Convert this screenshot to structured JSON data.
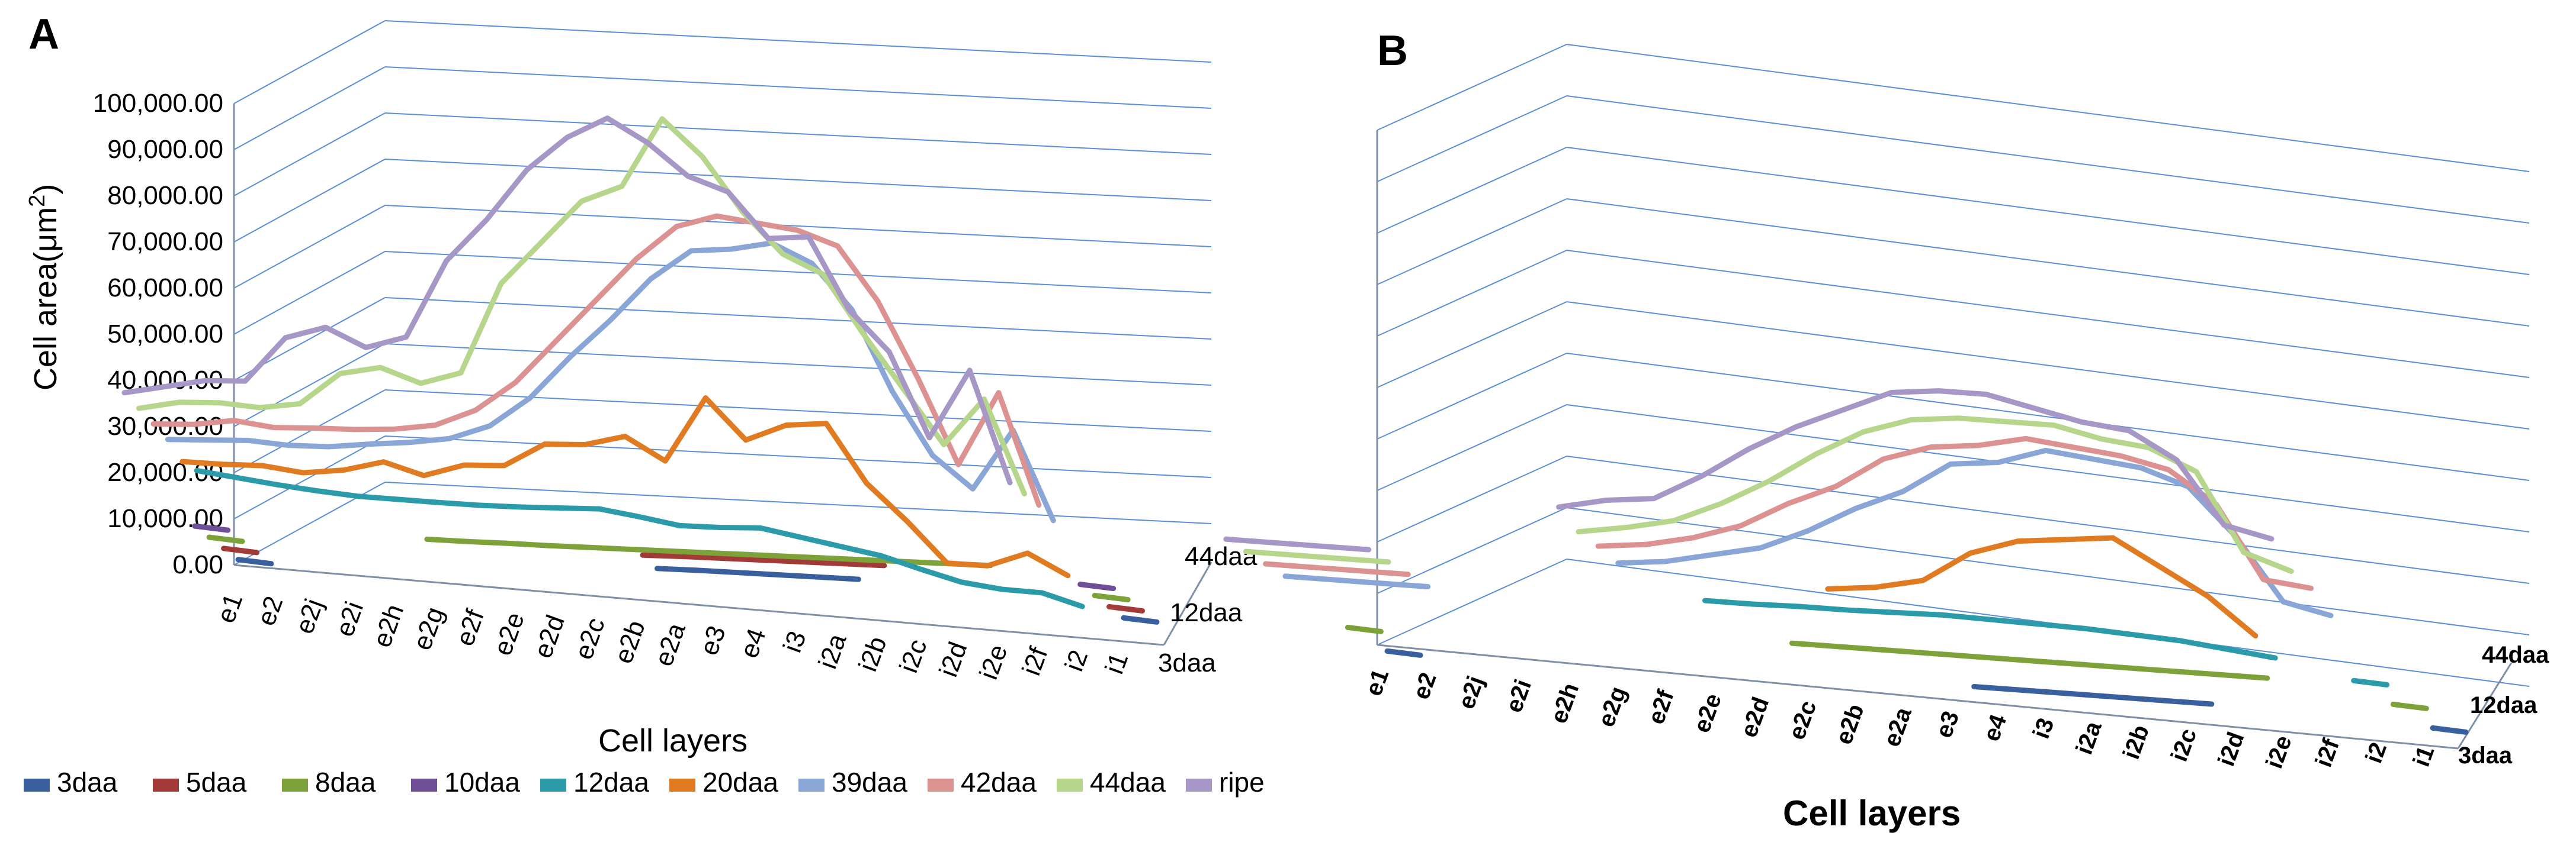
{
  "colors": {
    "3daa": "#3a5f9e",
    "5daa": "#a23b38",
    "8daa": "#7da23a",
    "10daa": "#6f4f97",
    "12daa": "#2b9aa9",
    "20daa": "#e07b22",
    "39daa": "#8aa6d6",
    "42daa": "#dc9291",
    "44daa": "#b6d68c",
    "ripe": "#a797c6"
  },
  "legend": [
    "3daa",
    "5daa",
    "8daa",
    "10daa",
    "12daa",
    "20daa",
    "39daa",
    "42daa",
    "44daa",
    "ripe"
  ],
  "chart_data": [
    {
      "panel": "A",
      "type": "line",
      "view": "3d",
      "ylabel": "Cell area(μm",
      "ylabel_sup": "2",
      "ylabel_close": ")",
      "xlabel": "Cell layers",
      "ylim": [
        0,
        100000
      ],
      "yticks": [
        "0.00",
        "10,000.00",
        "20,000.00",
        "30,000.00",
        "40,000.00",
        "50,000.00",
        "60,000.00",
        "70,000.00",
        "80,000.00",
        "90,000.00",
        "100,000.00"
      ],
      "categories": [
        "e1",
        "e2",
        "e2j",
        "e2i",
        "e2h",
        "e2g",
        "e2f",
        "e2e",
        "e2d",
        "e2c",
        "e2b",
        "e2a",
        "e3",
        "e4",
        "i3",
        "i2a",
        "i2b",
        "i2c",
        "i2d",
        "i2e",
        "i2f",
        "i2",
        "i1"
      ],
      "depth_labels": [
        "44daa",
        "12daa",
        "3daa"
      ],
      "series": [
        {
          "name": "3daa",
          "values": [
            300,
            null,
            null,
            null,
            null,
            null,
            null,
            null,
            null,
            null,
            4000,
            4200,
            4300,
            4400,
            4500,
            4600,
            null,
            null,
            null,
            null,
            null,
            null,
            500
          ]
        },
        {
          "name": "5daa",
          "values": [
            300,
            null,
            null,
            null,
            null,
            null,
            null,
            null,
            null,
            null,
            4500,
            4800,
            5000,
            5200,
            5400,
            5600,
            5800,
            null,
            null,
            null,
            null,
            null,
            500
          ]
        },
        {
          "name": "8daa",
          "values": [
            300,
            null,
            null,
            null,
            null,
            2500,
            2600,
            2800,
            2900,
            3100,
            3300,
            3500,
            3700,
            3900,
            4100,
            4300,
            4500,
            4700,
            4900,
            5100,
            null,
            null,
            500
          ]
        },
        {
          "name": "10daa",
          "values": [
            300,
            null,
            null,
            null,
            null,
            null,
            null,
            null,
            null,
            null,
            null,
            null,
            null,
            null,
            null,
            null,
            null,
            null,
            null,
            null,
            null,
            null,
            500
          ]
        },
        {
          "name": "12daa",
          "values": [
            10000,
            9000,
            8000,
            7200,
            6600,
            6500,
            6400,
            6400,
            6600,
            7000,
            7400,
            6200,
            4800,
            5000,
            5500,
            4000,
            2500,
            1000,
            -1500,
            -3800,
            -4800,
            -5000,
            -7500
          ]
        },
        {
          "name": "20daa",
          "values": [
            9500,
            9500,
            9800,
            8800,
            10000,
            12500,
            10000,
            13000,
            13500,
            19000,
            19500,
            22000,
            17000,
            32000,
            23000,
            27000,
            28000,
            15000,
            7000,
            -2000,
            -2000,
            1500,
            -3000
          ]
        },
        {
          "name": "39daa",
          "values": [
            12000,
            12500,
            13000,
            12500,
            12800,
            14000,
            15000,
            16500,
            20000,
            27000,
            37000,
            46000,
            56000,
            63000,
            64000,
            66000,
            62000,
            52000,
            34000,
            20000,
            13000,
            27000,
            7000
          ]
        },
        {
          "name": "42daa",
          "values": [
            13000,
            13500,
            15000,
            14000,
            14500,
            14800,
            15500,
            17000,
            21000,
            28000,
            38000,
            48000,
            58000,
            66000,
            69000,
            68000,
            67000,
            64000,
            52000,
            35000,
            16000,
            33000,
            8000
          ]
        },
        {
          "name": "44daa",
          "values": [
            14000,
            16000,
            16500,
            16000,
            17500,
            25000,
            27000,
            24000,
            27000,
            48000,
            58000,
            68000,
            72000,
            88000,
            80000,
            68000,
            59000,
            55000,
            42000,
            30000,
            18000,
            29000,
            8000
          ]
        },
        {
          "name": "ripe",
          "values": [
            15000,
            17000,
            19000,
            19500,
            30000,
            33000,
            29000,
            32000,
            50000,
            60000,
            72000,
            80000,
            85000,
            80000,
            73000,
            70000,
            60000,
            61000,
            45000,
            36000,
            17000,
            33000,
            8000
          ]
        }
      ]
    },
    {
      "panel": "B",
      "type": "line",
      "view": "3d",
      "xlabel": "Cell layers",
      "categories": [
        "e1",
        "e2",
        "e2j",
        "e2i",
        "e2h",
        "e2g",
        "e2f",
        "e2e",
        "e2d",
        "e2c",
        "e2b",
        "e2a",
        "e3",
        "e4",
        "i3",
        "i2a",
        "i2b",
        "i2c",
        "i2d",
        "i2e",
        "i2f",
        "i2",
        "i1"
      ],
      "depth_labels": [
        "44daa",
        "12daa",
        "3daa"
      ],
      "series": [
        {
          "name": "3daa",
          "values": [
            300,
            null,
            null,
            null,
            null,
            null,
            null,
            null,
            null,
            null,
            null,
            null,
            1200,
            1200,
            1200,
            1200,
            1200,
            1200,
            null,
            null,
            null,
            null,
            300
          ]
        },
        {
          "name": "5daa",
          "values": [
            null,
            null,
            null,
            null,
            null,
            null,
            null,
            null,
            null,
            null,
            null,
            null,
            null,
            null,
            null,
            null,
            null,
            null,
            null,
            null,
            null,
            null,
            null
          ]
        },
        {
          "name": "8daa",
          "values": [
            300,
            null,
            null,
            null,
            null,
            null,
            null,
            null,
            null,
            3000,
            3000,
            3000,
            3000,
            3000,
            3000,
            3000,
            3000,
            3000,
            3000,
            3000,
            null,
            null,
            300
          ]
        },
        {
          "name": "10daa",
          "values": [
            null,
            null,
            null,
            null,
            null,
            null,
            null,
            null,
            null,
            null,
            null,
            null,
            null,
            null,
            null,
            null,
            null,
            null,
            null,
            null,
            null,
            null,
            null
          ]
        },
        {
          "name": "12daa",
          "values": [
            null,
            null,
            null,
            null,
            null,
            null,
            null,
            null,
            6000,
            6000,
            6200,
            6200,
            6400,
            6600,
            6400,
            6200,
            6000,
            5500,
            5000,
            4000,
            3000,
            null,
            300
          ]
        },
        {
          "name": "20daa",
          "values": [
            null,
            null,
            null,
            null,
            null,
            null,
            null,
            null,
            null,
            null,
            null,
            8000,
            9000,
            11000,
            17000,
            20000,
            21000,
            22000,
            17000,
            12000,
            5000,
            null,
            null
          ]
        },
        {
          "name": "39daa",
          "values": [
            700,
            700,
            700,
            700,
            null,
            null,
            null,
            8000,
            9000,
            11000,
            13000,
            17000,
            22000,
            26000,
            32000,
            33000,
            36000,
            35000,
            34000,
            31000,
            22000,
            10000,
            8000
          ]
        },
        {
          "name": "42daa",
          "values": [
            800,
            800,
            800,
            800,
            null,
            null,
            null,
            9000,
            10000,
            12000,
            15000,
            20000,
            24000,
            30000,
            33000,
            34000,
            36000,
            35000,
            34000,
            32000,
            26000,
            12000,
            11000
          ]
        },
        {
          "name": "44daa",
          "values": [
            900,
            900,
            900,
            900,
            null,
            null,
            null,
            9500,
            11000,
            13000,
            17000,
            22000,
            28000,
            33000,
            36000,
            37000,
            37000,
            37000,
            35000,
            34000,
            30000,
            15000,
            12000
          ]
        },
        {
          "name": "ripe",
          "values": [
            1000,
            1000,
            1000,
            1000,
            null,
            null,
            null,
            12000,
            14000,
            15000,
            20000,
            26000,
            31000,
            35000,
            39000,
            40000,
            40000,
            38000,
            36000,
            35000,
            30000,
            18000,
            16000
          ]
        }
      ]
    }
  ],
  "panel_labels": {
    "a": "A",
    "b": "B"
  }
}
